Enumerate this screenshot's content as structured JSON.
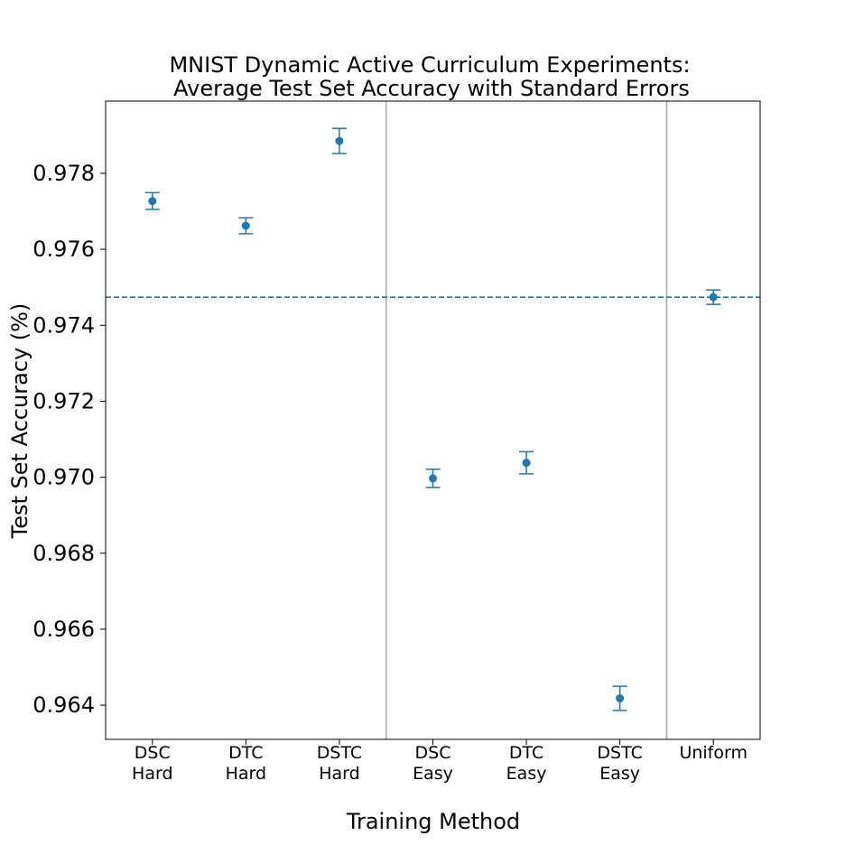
{
  "chart_data": {
    "type": "scatter",
    "title_line1": "MNIST Dynamic Active Curriculum Experiments:",
    "title_line2": "Average Test Set Accuracy with Standard Errors",
    "xlabel": "Training Method",
    "ylabel": "Test Set Accuracy (%)",
    "ylim": [
      0.9631,
      0.9799
    ],
    "yticks": [
      "0.964",
      "0.966",
      "0.968",
      "0.970",
      "0.972",
      "0.974",
      "0.976",
      "0.978"
    ],
    "ytick_values": [
      0.964,
      0.966,
      0.968,
      0.97,
      0.972,
      0.974,
      0.976,
      0.978
    ],
    "categories": [
      [
        "DSC",
        "Hard"
      ],
      [
        "DTC",
        "Hard"
      ],
      [
        "DSTC",
        "Hard"
      ],
      [
        "DSC",
        "Easy"
      ],
      [
        "DTC",
        "Easy"
      ],
      [
        "DSTC",
        "Easy"
      ],
      [
        "Uniform"
      ]
    ],
    "values": [
      0.97727,
      0.97662,
      0.97885,
      0.96997,
      0.97038,
      0.96418,
      0.97474
    ],
    "errors": [
      0.00022,
      0.00021,
      0.00033,
      0.00024,
      0.00029,
      0.00032,
      0.00019
    ],
    "baseline": 0.97474,
    "separators_after_index": [
      2,
      5
    ],
    "grid": false,
    "colors": {
      "marker": "#1f77b4",
      "baseline": "#1f77b4",
      "separator": "#a9a9a9",
      "axes": "#000000"
    }
  }
}
